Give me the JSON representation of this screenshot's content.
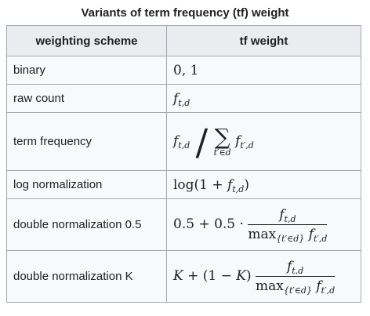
{
  "caption": "Variants of term frequency (tf) weight",
  "headers": {
    "scheme": "weighting scheme",
    "weight": "tf weight"
  },
  "rows": [
    {
      "scheme": "binary",
      "weight": "0, 1"
    },
    {
      "scheme": "raw count",
      "weight": "f_{t,d}"
    },
    {
      "scheme": "term frequency",
      "weight": "f_{t,d} / Σ_{t′∈d} f_{t′,d}"
    },
    {
      "scheme": "log normalization",
      "weight": "log(1 + f_{t,d})"
    },
    {
      "scheme": "double normalization 0.5",
      "weight": "0.5 + 0.5 · f_{t,d} / max_{t′∈d} f_{t′,d}"
    },
    {
      "scheme": "double normalization K",
      "weight": "K + (1 − K) f_{t,d} / max_{t′∈d} f_{t′,d}"
    }
  ],
  "formula_text": {
    "zero_one": "0, 1",
    "f": "f",
    "td": "t,d",
    "tpd": "t′,d",
    "sum_symbol": "∑",
    "sum_limit": "t′∈d",
    "slash": "/",
    "log_prefix": "log(1 + ",
    "close_paren": ")",
    "half_prefix": "0.5 + 0.5 · ",
    "max": "max",
    "max_limit": "{t′∈d}",
    "k_prefix_k": "K",
    "k_prefix_mid": " + (1 − ",
    "k_prefix_close": ")"
  }
}
